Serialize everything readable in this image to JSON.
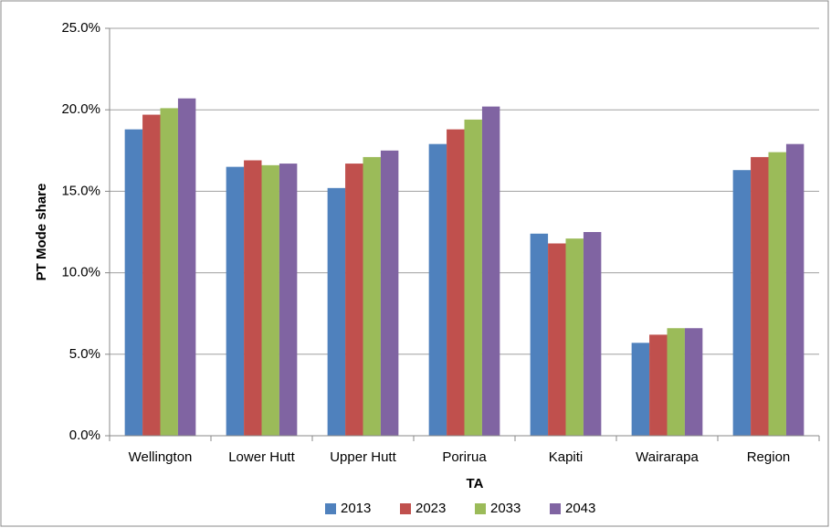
{
  "chart_data": {
    "type": "bar",
    "x_label": "TA",
    "y_label": "PT Mode share",
    "categories": [
      "Wellington",
      "Lower Hutt",
      "Upper Hutt",
      "Porirua",
      "Kapiti",
      "Wairarapa",
      "Region"
    ],
    "series": [
      {
        "name": "2013",
        "color": "#4f81bd",
        "values": [
          18.8,
          16.5,
          15.2,
          17.9,
          12.4,
          5.7,
          16.3
        ]
      },
      {
        "name": "2023",
        "color": "#c0504d",
        "values": [
          19.7,
          16.9,
          16.7,
          18.8,
          11.8,
          6.2,
          17.1
        ]
      },
      {
        "name": "2033",
        "color": "#9bbb59",
        "values": [
          20.1,
          16.6,
          17.1,
          19.4,
          12.1,
          6.6,
          17.4
        ]
      },
      {
        "name": "2043",
        "color": "#8064a2",
        "values": [
          20.7,
          16.7,
          17.5,
          20.2,
          12.5,
          6.6,
          17.9
        ]
      }
    ],
    "ylim": [
      0,
      25
    ],
    "yticks": [
      {
        "value": 0,
        "label": "0.0%"
      },
      {
        "value": 5,
        "label": "5.0%"
      },
      {
        "value": 10,
        "label": "10.0%"
      },
      {
        "value": 15,
        "label": "15.0%"
      },
      {
        "value": 20,
        "label": "20.0%"
      },
      {
        "value": 25,
        "label": "25.0%"
      }
    ],
    "grid": true,
    "legend": "bottom"
  }
}
